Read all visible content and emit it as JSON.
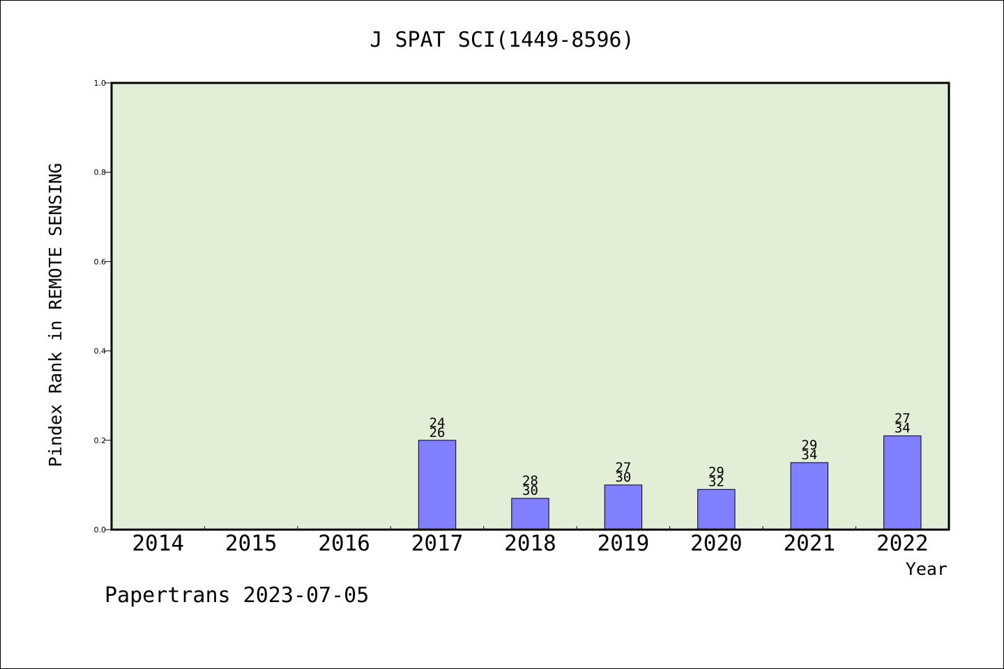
{
  "chart_data": {
    "type": "bar",
    "title": "J SPAT SCI(1449-8596)",
    "xlabel": "Year",
    "ylabel": "Pindex Rank in REMOTE SENSING",
    "ylim": [
      0,
      1.0
    ],
    "yticks": [
      "0.0",
      "0.2",
      "0.4",
      "0.6",
      "0.8",
      "1.0"
    ],
    "categories": [
      "2014",
      "2015",
      "2016",
      "2017",
      "2018",
      "2019",
      "2020",
      "2021",
      "2022"
    ],
    "values": [
      null,
      null,
      null,
      0.2,
      0.07,
      0.1,
      0.09,
      0.15,
      0.21
    ],
    "rank_labels": [
      null,
      null,
      null,
      "24",
      "28",
      "27",
      "29",
      "29",
      "27"
    ],
    "total_labels": [
      null,
      null,
      null,
      "26",
      "30",
      "30",
      "32",
      "34",
      "34"
    ],
    "grid": false,
    "legend": "none",
    "colors": {
      "plot_background": "#e2efd6",
      "bar_fill": "#8080ff",
      "bar_stroke": "#000000"
    }
  },
  "footer": {
    "credit": "Papertrans 2023-07-05"
  }
}
